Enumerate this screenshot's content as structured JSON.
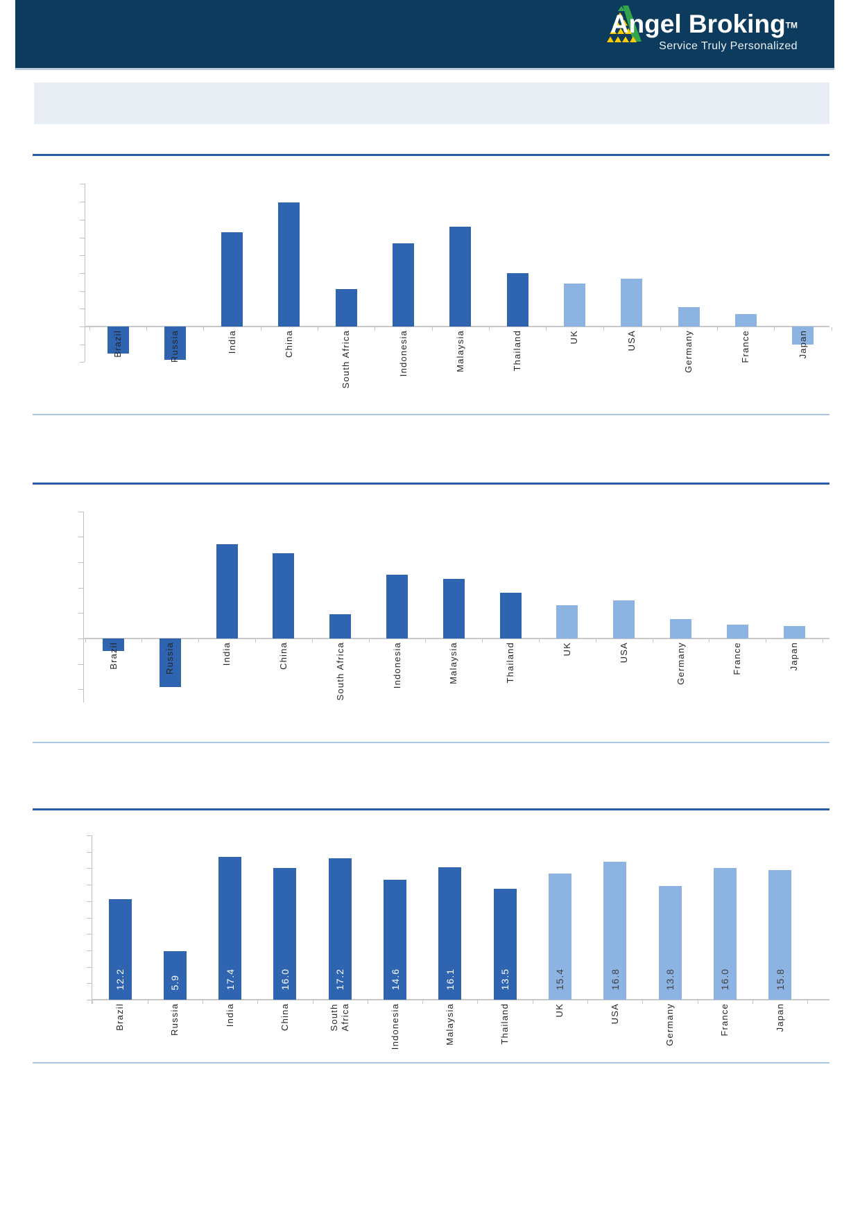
{
  "header": {
    "brand": "Angel Broking",
    "trademark_symbol": "TM",
    "tagline": "Service Truly Personalized"
  },
  "banner": {
    "text": ""
  },
  "colors": {
    "header_bg": "#0c3b5d",
    "header_edge": "#b9cddf",
    "banner_bg": "#e9eef5",
    "title_rule": "#2a5ba9",
    "divider_rule": "#a9c6e3",
    "axis_gray": "#bfbfbf",
    "zero_line_gray": "#c8c8c8",
    "bar_dark_blue": "#2e64b0",
    "bar_light_blue": "#8db3e2",
    "label_text": "#262626",
    "value_label_on_dark": "#ffffff",
    "value_label_on_light": "#404040",
    "logo_green": "#33a64c",
    "logo_yellow": "#ffcc00"
  },
  "chart_data": [
    {
      "type": "bar",
      "title": "",
      "categories": [
        "Brazil",
        "Russia",
        "India",
        "China",
        "South Africa",
        "Indonesia",
        "Malaysia",
        "Thailand",
        "UK",
        "USA",
        "Germany",
        "France",
        "Japan"
      ],
      "values": [
        -3.0,
        -3.7,
        10.6,
        13.9,
        4.2,
        9.3,
        11.2,
        6.0,
        4.8,
        5.4,
        2.2,
        1.4,
        -2.0
      ],
      "groups": [
        "dark",
        "dark",
        "dark",
        "dark",
        "dark",
        "dark",
        "dark",
        "dark",
        "light",
        "light",
        "light",
        "light",
        "light"
      ],
      "value_labels": null,
      "ylim": [
        -4,
        16
      ],
      "ytick_step": 2,
      "y_axis_labels_visible": false,
      "values_estimated_from_gridlines": true,
      "xlabel": "",
      "ylabel": "",
      "grid": false,
      "legend": false
    },
    {
      "type": "bar",
      "title": "",
      "categories": [
        "Brazil",
        "Russia",
        "India",
        "China",
        "South Africa",
        "Indonesia",
        "Malaysia",
        "Thailand",
        "UK",
        "USA",
        "Germany",
        "France",
        "Japan"
      ],
      "values": [
        -1.0,
        -3.8,
        7.4,
        6.7,
        1.9,
        5.0,
        4.7,
        3.6,
        2.6,
        3.0,
        1.5,
        1.1,
        1.0
      ],
      "groups": [
        "dark",
        "dark",
        "dark",
        "dark",
        "dark",
        "dark",
        "dark",
        "dark",
        "light",
        "light",
        "light",
        "light",
        "light"
      ],
      "value_labels": null,
      "ylim": [
        -5,
        10
      ],
      "ytick_step": 2,
      "y_axis_labels_visible": false,
      "values_estimated_from_gridlines": true,
      "xlabel": "",
      "ylabel": "",
      "grid": false,
      "legend": false
    },
    {
      "type": "bar",
      "title": "",
      "categories": [
        "Brazil",
        "Russia",
        "India",
        "China",
        "South\nAfrica",
        "Indonesia",
        "Malaysia",
        "Thailand",
        "UK",
        "USA",
        "Germany",
        "France",
        "Japan"
      ],
      "values": [
        12.2,
        5.9,
        17.4,
        16.0,
        17.2,
        14.6,
        16.1,
        13.5,
        15.4,
        16.8,
        13.8,
        16.0,
        15.8
      ],
      "groups": [
        "dark",
        "dark",
        "dark",
        "dark",
        "dark",
        "dark",
        "dark",
        "dark",
        "light",
        "light",
        "light",
        "light",
        "light"
      ],
      "value_labels": [
        "12.2",
        "5.9",
        "17.4",
        "16.0",
        "17.2",
        "14.6",
        "16.1",
        "13.5",
        "15.4",
        "16.8",
        "13.8",
        "16.0",
        "15.8"
      ],
      "ylim": [
        0,
        20
      ],
      "ytick_step": 2,
      "y_axis_labels_visible": false,
      "values_estimated_from_gridlines": false,
      "xlabel": "",
      "ylabel": "",
      "grid": false,
      "legend": false
    }
  ]
}
